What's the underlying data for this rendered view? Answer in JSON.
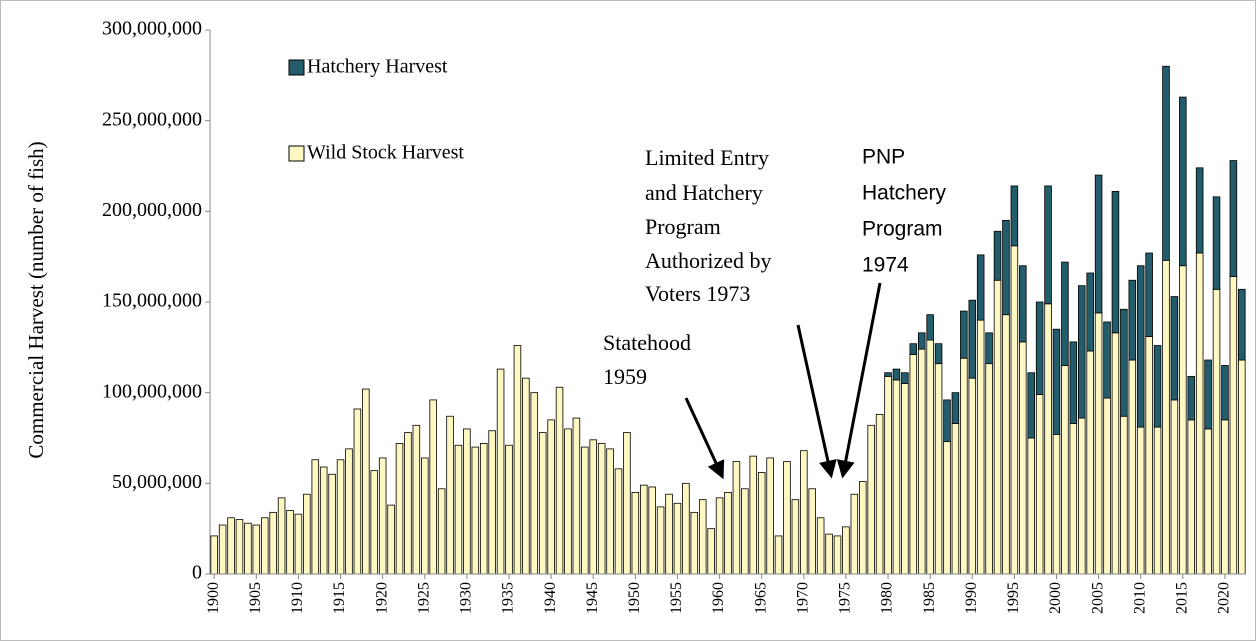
{
  "chart_data": {
    "type": "stacked-bar",
    "y_label": "Commercial Harvest (number of fish)",
    "x": [
      1900,
      1901,
      1902,
      1903,
      1904,
      1905,
      1906,
      1907,
      1908,
      1909,
      1910,
      1911,
      1912,
      1913,
      1914,
      1915,
      1916,
      1917,
      1918,
      1919,
      1920,
      1921,
      1922,
      1923,
      1924,
      1925,
      1926,
      1927,
      1928,
      1929,
      1930,
      1931,
      1932,
      1933,
      1934,
      1935,
      1936,
      1937,
      1938,
      1939,
      1940,
      1941,
      1942,
      1943,
      1944,
      1945,
      1946,
      1947,
      1948,
      1949,
      1950,
      1951,
      1952,
      1953,
      1954,
      1955,
      1956,
      1957,
      1958,
      1959,
      1960,
      1961,
      1962,
      1963,
      1964,
      1965,
      1966,
      1967,
      1968,
      1969,
      1970,
      1971,
      1972,
      1973,
      1974,
      1975,
      1976,
      1977,
      1978,
      1979,
      1980,
      1981,
      1982,
      1983,
      1984,
      1985,
      1986,
      1987,
      1988,
      1989,
      1990,
      1991,
      1992,
      1993,
      1994,
      1995,
      1996,
      1997,
      1998,
      1999,
      2000,
      2001,
      2002,
      2003,
      2004,
      2005,
      2006,
      2007,
      2008,
      2009,
      2010,
      2011,
      2012,
      2013,
      2014,
      2015,
      2016,
      2017,
      2018,
      2019,
      2020,
      2021,
      2022
    ],
    "xlim": [
      1899.5,
      2022.5
    ],
    "xticks": [
      1900,
      1905,
      1910,
      1915,
      1920,
      1925,
      1930,
      1935,
      1940,
      1945,
      1950,
      1955,
      1960,
      1965,
      1970,
      1975,
      1980,
      1985,
      1990,
      1995,
      2000,
      2005,
      2010,
      2015,
      2020
    ],
    "ylim": [
      0,
      300000000
    ],
    "yticks": [
      0,
      {
        "value": 50000000,
        "label": "50,000,000"
      },
      {
        "value": 100000000,
        "label": "100,000,000"
      },
      {
        "value": 150000000,
        "label": "150,000,000"
      },
      {
        "value": 200000000,
        "label": "200,000,000"
      },
      {
        "value": 250000000,
        "label": "250,000,000"
      },
      {
        "value": 300000000,
        "label": "300,000,000"
      }
    ],
    "legend_position": "top-left",
    "series": [
      {
        "name": "Wild Stock Harvest",
        "color": "#fdf8c2",
        "values": [
          21000000,
          27000000,
          31000000,
          30000000,
          28000000,
          27000000,
          31000000,
          34000000,
          42000000,
          35000000,
          33000000,
          44000000,
          63000000,
          59000000,
          55000000,
          63000000,
          69000000,
          91000000,
          102000000,
          57000000,
          64000000,
          38000000,
          72000000,
          78000000,
          82000000,
          64000000,
          96000000,
          47000000,
          87000000,
          71000000,
          80000000,
          70000000,
          72000000,
          79000000,
          113000000,
          71000000,
          126000000,
          108000000,
          100000000,
          78000000,
          85000000,
          103000000,
          80000000,
          86000000,
          70000000,
          74000000,
          72000000,
          69000000,
          58000000,
          78000000,
          45000000,
          49000000,
          48000000,
          37000000,
          44000000,
          39000000,
          50000000,
          34000000,
          41000000,
          25000000,
          42000000,
          45000000,
          62000000,
          47000000,
          65000000,
          56000000,
          64000000,
          21000000,
          62000000,
          41000000,
          68000000,
          47000000,
          31000000,
          22000000,
          21000000,
          26000000,
          44000000,
          51000000,
          82000000,
          88000000,
          109000000,
          107000000,
          105000000,
          121000000,
          124000000,
          129000000,
          116000000,
          73000000,
          83000000,
          119000000,
          108000000,
          140000000,
          116000000,
          162000000,
          143000000,
          181000000,
          128000000,
          75000000,
          99000000,
          149000000,
          77000000,
          115000000,
          83000000,
          86000000,
          123000000,
          144000000,
          97000000,
          133000000,
          87000000,
          118000000,
          81000000,
          131000000,
          81000000,
          173000000,
          96000000,
          170000000,
          85000000,
          177000000,
          80000000,
          157000000,
          85000000,
          164000000,
          118000000
        ]
      },
      {
        "name": "Hatchery Harvest",
        "color": "#235d6c",
        "values": [
          0,
          0,
          0,
          0,
          0,
          0,
          0,
          0,
          0,
          0,
          0,
          0,
          0,
          0,
          0,
          0,
          0,
          0,
          0,
          0,
          0,
          0,
          0,
          0,
          0,
          0,
          0,
          0,
          0,
          0,
          0,
          0,
          0,
          0,
          0,
          0,
          0,
          0,
          0,
          0,
          0,
          0,
          0,
          0,
          0,
          0,
          0,
          0,
          0,
          0,
          0,
          0,
          0,
          0,
          0,
          0,
          0,
          0,
          0,
          0,
          0,
          0,
          0,
          0,
          0,
          0,
          0,
          0,
          0,
          0,
          0,
          0,
          0,
          0,
          0,
          0,
          0,
          0,
          0,
          0,
          2000000,
          6000000,
          6000000,
          6000000,
          9000000,
          14000000,
          11000000,
          23000000,
          17000000,
          26000000,
          43000000,
          36000000,
          17000000,
          27000000,
          52000000,
          33000000,
          42000000,
          36000000,
          51000000,
          65000000,
          58000000,
          57000000,
          45000000,
          73000000,
          43000000,
          76000000,
          42000000,
          78000000,
          59000000,
          44000000,
          89000000,
          46000000,
          45000000,
          107000000,
          57000000,
          93000000,
          24000000,
          47000000,
          38000000,
          51000000,
          30000000,
          64000000,
          39000000
        ]
      }
    ],
    "annotations": [
      {
        "lines": [
          "Statehood",
          "1959"
        ]
      },
      {
        "lines": [
          "Limited Entry",
          "and Hatchery",
          "Program",
          "Authorized by",
          "Voters 1973"
        ]
      },
      {
        "lines": [
          "PNP",
          "Hatchery",
          "Program",
          "1974"
        ]
      }
    ]
  }
}
